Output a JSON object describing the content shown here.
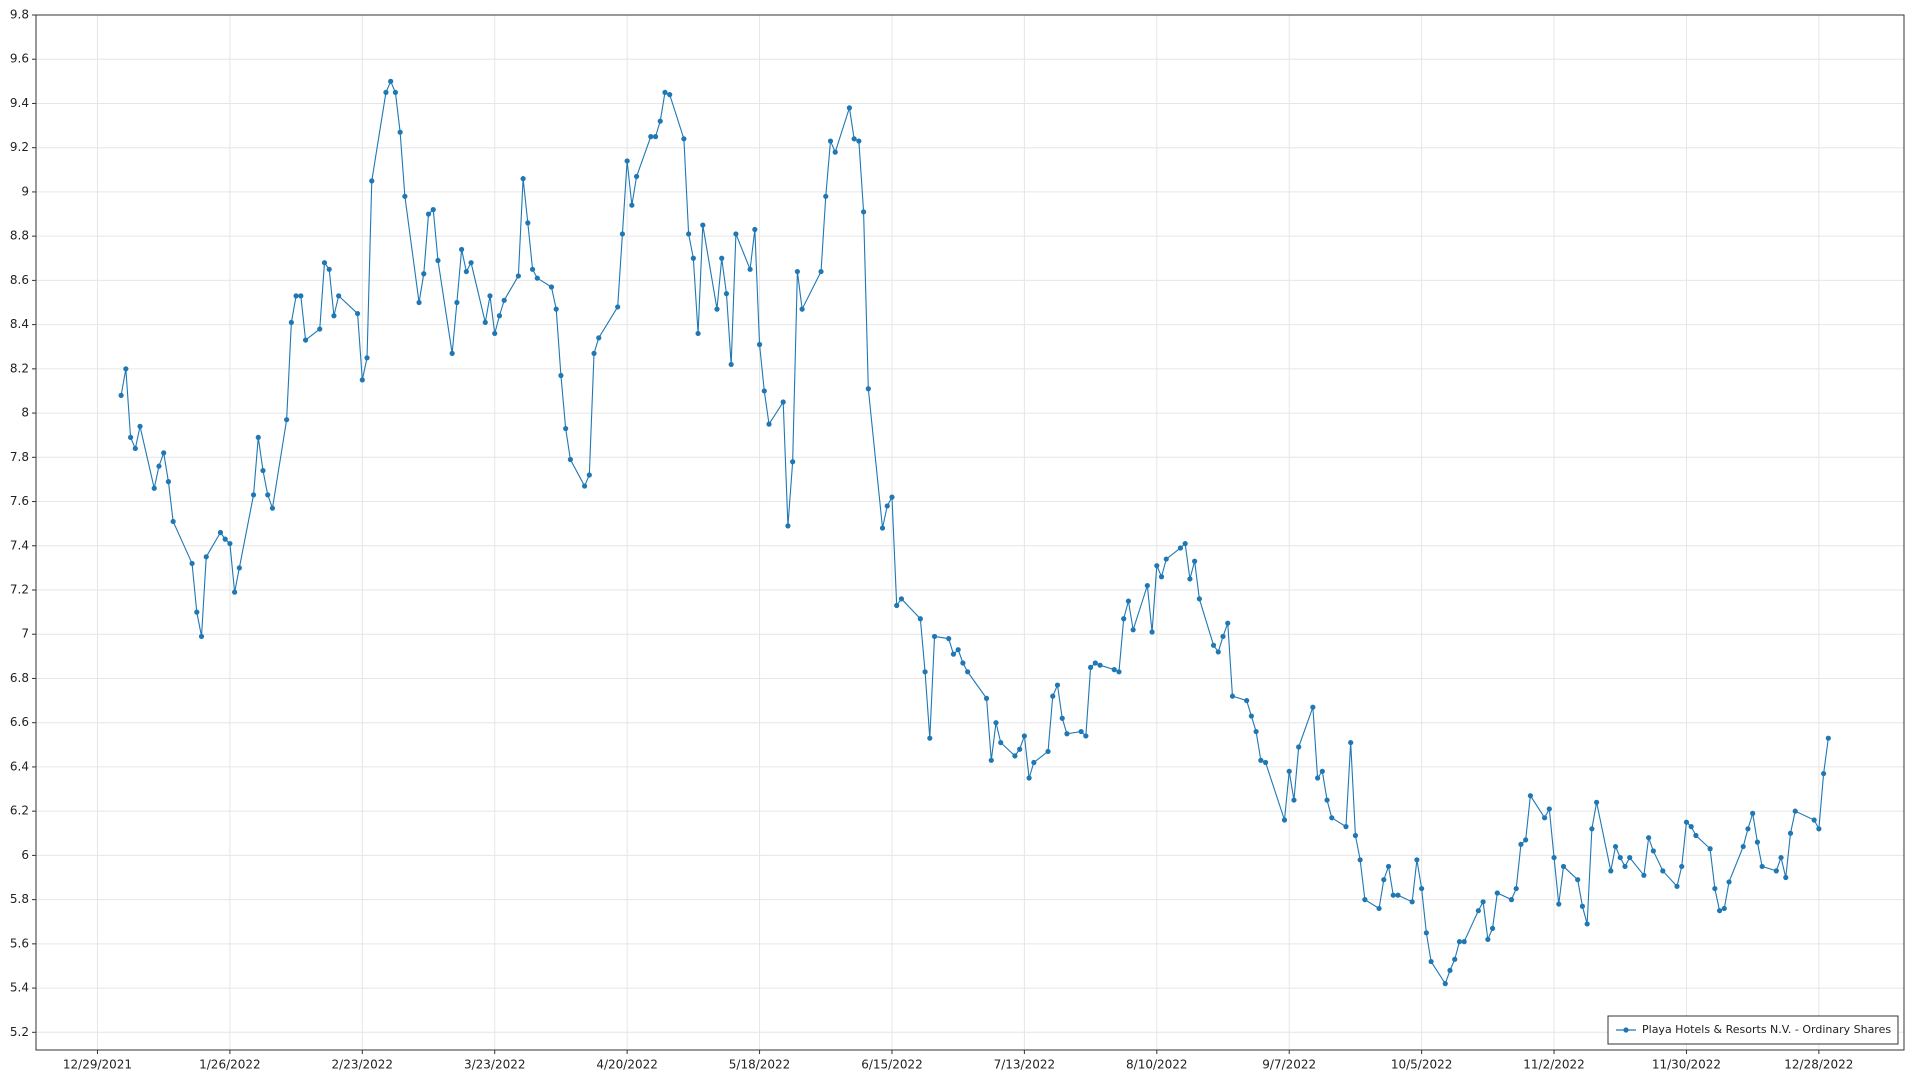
{
  "chart_data": {
    "type": "line",
    "x": [
      "1/3/2022",
      "1/4/2022",
      "1/5/2022",
      "1/6/2022",
      "1/7/2022",
      "1/10/2022",
      "1/11/2022",
      "1/12/2022",
      "1/13/2022",
      "1/14/2022",
      "1/18/2022",
      "1/19/2022",
      "1/20/2022",
      "1/21/2022",
      "1/24/2022",
      "1/25/2022",
      "1/26/2022",
      "1/27/2022",
      "1/28/2022",
      "1/31/2022",
      "2/1/2022",
      "2/2/2022",
      "2/3/2022",
      "2/4/2022",
      "2/7/2022",
      "2/8/2022",
      "2/9/2022",
      "2/10/2022",
      "2/11/2022",
      "2/14/2022",
      "2/15/2022",
      "2/16/2022",
      "2/17/2022",
      "2/18/2022",
      "2/22/2022",
      "2/23/2022",
      "2/24/2022",
      "2/25/2022",
      "2/28/2022",
      "3/1/2022",
      "3/2/2022",
      "3/3/2022",
      "3/4/2022",
      "3/7/2022",
      "3/8/2022",
      "3/9/2022",
      "3/10/2022",
      "3/11/2022",
      "3/14/2022",
      "3/15/2022",
      "3/16/2022",
      "3/17/2022",
      "3/18/2022",
      "3/21/2022",
      "3/22/2022",
      "3/23/2022",
      "3/24/2022",
      "3/25/2022",
      "3/28/2022",
      "3/29/2022",
      "3/30/2022",
      "3/31/2022",
      "4/1/2022",
      "4/4/2022",
      "4/5/2022",
      "4/6/2022",
      "4/7/2022",
      "4/8/2022",
      "4/11/2022",
      "4/12/2022",
      "4/13/2022",
      "4/14/2022",
      "4/18/2022",
      "4/19/2022",
      "4/20/2022",
      "4/21/2022",
      "4/22/2022",
      "4/25/2022",
      "4/26/2022",
      "4/27/2022",
      "4/28/2022",
      "4/29/2022",
      "5/2/2022",
      "5/3/2022",
      "5/4/2022",
      "5/5/2022",
      "5/6/2022",
      "5/9/2022",
      "5/10/2022",
      "5/11/2022",
      "5/12/2022",
      "5/13/2022",
      "5/16/2022",
      "5/17/2022",
      "5/18/2022",
      "5/19/2022",
      "5/20/2022",
      "5/23/2022",
      "5/24/2022",
      "5/25/2022",
      "5/26/2022",
      "5/27/2022",
      "5/31/2022",
      "6/1/2022",
      "6/2/2022",
      "6/3/2022",
      "6/6/2022",
      "6/7/2022",
      "6/8/2022",
      "6/9/2022",
      "6/10/2022",
      "6/13/2022",
      "6/14/2022",
      "6/15/2022",
      "6/16/2022",
      "6/17/2022",
      "6/21/2022",
      "6/22/2022",
      "6/23/2022",
      "6/24/2022",
      "6/27/2022",
      "6/28/2022",
      "6/29/2022",
      "6/30/2022",
      "7/1/2022",
      "7/5/2022",
      "7/6/2022",
      "7/7/2022",
      "7/8/2022",
      "7/11/2022",
      "7/12/2022",
      "7/13/2022",
      "7/14/2022",
      "7/15/2022",
      "7/18/2022",
      "7/19/2022",
      "7/20/2022",
      "7/21/2022",
      "7/22/2022",
      "7/25/2022",
      "7/26/2022",
      "7/27/2022",
      "7/28/2022",
      "7/29/2022",
      "8/1/2022",
      "8/2/2022",
      "8/3/2022",
      "8/4/2022",
      "8/5/2022",
      "8/8/2022",
      "8/9/2022",
      "8/10/2022",
      "8/11/2022",
      "8/12/2022",
      "8/15/2022",
      "8/16/2022",
      "8/17/2022",
      "8/18/2022",
      "8/19/2022",
      "8/22/2022",
      "8/23/2022",
      "8/24/2022",
      "8/25/2022",
      "8/26/2022",
      "8/29/2022",
      "8/30/2022",
      "8/31/2022",
      "9/1/2022",
      "9/2/2022",
      "9/6/2022",
      "9/7/2022",
      "9/8/2022",
      "9/9/2022",
      "9/12/2022",
      "9/13/2022",
      "9/14/2022",
      "9/15/2022",
      "9/16/2022",
      "9/19/2022",
      "9/20/2022",
      "9/21/2022",
      "9/22/2022",
      "9/23/2022",
      "9/26/2022",
      "9/27/2022",
      "9/28/2022",
      "9/29/2022",
      "9/30/2022",
      "10/3/2022",
      "10/4/2022",
      "10/5/2022",
      "10/6/2022",
      "10/7/2022",
      "10/10/2022",
      "10/11/2022",
      "10/12/2022",
      "10/13/2022",
      "10/14/2022",
      "10/17/2022",
      "10/18/2022",
      "10/19/2022",
      "10/20/2022",
      "10/21/2022",
      "10/24/2022",
      "10/25/2022",
      "10/26/2022",
      "10/27/2022",
      "10/28/2022",
      "10/31/2022",
      "11/1/2022",
      "11/2/2022",
      "11/3/2022",
      "11/4/2022",
      "11/7/2022",
      "11/8/2022",
      "11/9/2022",
      "11/10/2022",
      "11/11/2022",
      "11/14/2022",
      "11/15/2022",
      "11/16/2022",
      "11/17/2022",
      "11/18/2022",
      "11/21/2022",
      "11/22/2022",
      "11/23/2022",
      "11/25/2022",
      "11/28/2022",
      "11/29/2022",
      "11/30/2022",
      "12/1/2022",
      "12/2/2022",
      "12/5/2022",
      "12/6/2022",
      "12/7/2022",
      "12/8/2022",
      "12/9/2022",
      "12/12/2022",
      "12/13/2022",
      "12/14/2022",
      "12/15/2022",
      "12/16/2022",
      "12/19/2022",
      "12/20/2022",
      "12/21/2022",
      "12/22/2022",
      "12/23/2022",
      "12/27/2022",
      "12/28/2022",
      "12/29/2022",
      "12/30/2022"
    ],
    "series": [
      {
        "name": "Playa Hotels & Resorts N.V. - Ordinary Shares",
        "color": "#1f78b4",
        "values": [
          8.08,
          8.2,
          7.89,
          7.84,
          7.94,
          7.66,
          7.76,
          7.82,
          7.69,
          7.51,
          7.32,
          7.1,
          6.99,
          7.35,
          7.46,
          7.43,
          7.41,
          7.19,
          7.3,
          7.63,
          7.89,
          7.74,
          7.63,
          7.57,
          7.97,
          8.41,
          8.53,
          8.53,
          8.33,
          8.38,
          8.68,
          8.65,
          8.44,
          8.53,
          8.45,
          8.15,
          8.25,
          9.05,
          9.45,
          9.5,
          9.45,
          9.27,
          8.98,
          8.5,
          8.63,
          8.9,
          8.92,
          8.69,
          8.27,
          8.5,
          8.74,
          8.64,
          8.68,
          8.41,
          8.53,
          8.36,
          8.44,
          8.51,
          8.62,
          9.06,
          8.86,
          8.65,
          8.61,
          8.57,
          8.47,
          8.17,
          7.93,
          7.79,
          7.67,
          7.72,
          8.27,
          8.34,
          8.48,
          8.81,
          9.14,
          8.94,
          9.07,
          9.25,
          9.25,
          9.32,
          9.45,
          9.44,
          9.24,
          8.81,
          8.7,
          8.36,
          8.85,
          8.47,
          8.7,
          8.54,
          8.22,
          8.81,
          8.65,
          8.83,
          8.31,
          8.1,
          7.95,
          8.05,
          7.49,
          7.78,
          8.64,
          8.47,
          8.64,
          8.98,
          9.23,
          9.18,
          9.38,
          9.24,
          9.23,
          8.91,
          8.11,
          7.48,
          7.58,
          7.62,
          7.13,
          7.16,
          7.07,
          6.83,
          6.53,
          6.99,
          6.98,
          6.91,
          6.93,
          6.87,
          6.83,
          6.71,
          6.43,
          6.6,
          6.51,
          6.45,
          6.48,
          6.54,
          6.35,
          6.42,
          6.47,
          6.72,
          6.77,
          6.62,
          6.55,
          6.56,
          6.54,
          6.85,
          6.87,
          6.86,
          6.84,
          6.83,
          7.07,
          7.15,
          7.02,
          7.22,
          7.01,
          7.31,
          7.26,
          7.34,
          7.39,
          7.41,
          7.25,
          7.33,
          7.16,
          6.95,
          6.92,
          6.99,
          7.05,
          6.72,
          6.7,
          6.63,
          6.56,
          6.43,
          6.42,
          6.16,
          6.38,
          6.25,
          6.49,
          6.67,
          6.35,
          6.38,
          6.25,
          6.17,
          6.13,
          6.51,
          6.09,
          5.98,
          5.8,
          5.76,
          5.89,
          5.95,
          5.82,
          5.82,
          5.79,
          5.98,
          5.85,
          5.65,
          5.52,
          5.42,
          5.48,
          5.53,
          5.61,
          5.61,
          5.75,
          5.79,
          5.62,
          5.67,
          5.83,
          5.8,
          5.85,
          6.05,
          6.07,
          6.27,
          6.17,
          6.21,
          5.99,
          5.78,
          5.95,
          5.89,
          5.77,
          5.69,
          6.12,
          6.24,
          5.93,
          6.04,
          5.99,
          5.95,
          5.99,
          5.91,
          6.08,
          6.02,
          5.93,
          5.86,
          5.95,
          6.15,
          6.13,
          6.09,
          6.03,
          5.85,
          5.75,
          5.76,
          5.88,
          6.04,
          6.12,
          6.19,
          6.06,
          5.95,
          5.93,
          5.99,
          5.9,
          6.1,
          6.2,
          6.16,
          6.12,
          6.37,
          6.53
        ]
      }
    ],
    "xlim": [
      "12/16/2021",
      "1/15/2023"
    ],
    "xticks": [
      "12/29/2021",
      "1/26/2022",
      "2/23/2022",
      "3/23/2022",
      "4/20/2022",
      "5/18/2022",
      "6/15/2022",
      "7/13/2022",
      "8/10/2022",
      "9/7/2022",
      "10/5/2022",
      "11/2/2022",
      "11/30/2022",
      "12/28/2022"
    ],
    "ylim": [
      5.12,
      9.8
    ],
    "yticks": [
      5.2,
      5.4,
      5.6,
      5.8,
      6,
      6.2,
      6.4,
      6.6,
      6.8,
      7,
      7.2,
      7.4,
      7.6,
      7.8,
      8,
      8.2,
      8.4,
      8.6,
      8.8,
      9,
      9.2,
      9.4,
      9.6,
      9.8
    ],
    "grid": true,
    "legend": "lower right"
  }
}
